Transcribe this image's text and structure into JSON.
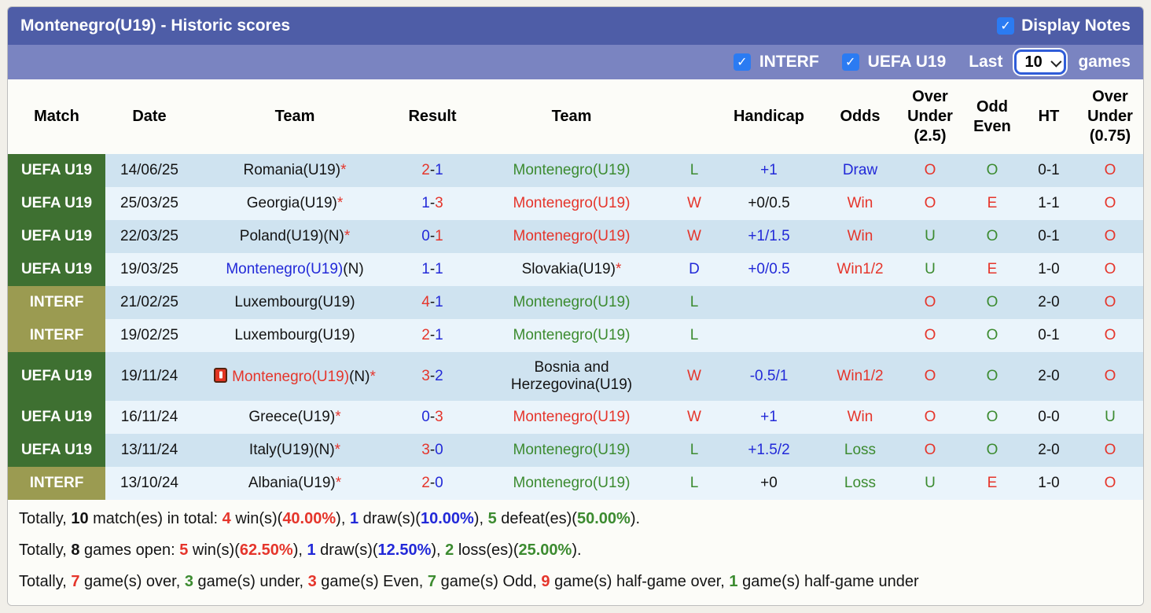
{
  "header": {
    "title": "Montenegro(U19) - Historic scores",
    "display_notes_label": "Display Notes",
    "filters": {
      "interf_label": "INTERF",
      "uefa_label": "UEFA U19",
      "last_label": "Last",
      "last_value": "10",
      "games_label": "games"
    }
  },
  "colors": {
    "bar1_bg": "#4e5da7",
    "bar2_bg": "#7a84c1",
    "checkbox_blue": "#2b7bf2",
    "badge_green": "#3e7031",
    "badge_olive": "#9b9b51",
    "stripe_dark": "#cfe3f0",
    "stripe_light": "#eaf4fb",
    "text_red": "#e5352b",
    "text_blue": "#2229d8",
    "text_green": "#3c8b30"
  },
  "table": {
    "columns": [
      "Match",
      "Date",
      "Team",
      "Result",
      "Team",
      "",
      "Handicap",
      "Odds",
      "Over\nUnder\n(2.5)",
      "Odd\nEven",
      "HT",
      "Over\nUnder\n(0.75)"
    ],
    "rows": [
      {
        "badge": {
          "label": "UEFA U19",
          "style": "green"
        },
        "date": "14/06/25",
        "icon": false,
        "tall": false,
        "home": [
          {
            "t": "Romania(U19)",
            "c": "k"
          },
          {
            "t": "*",
            "c": "r"
          }
        ],
        "score": {
          "h": "2",
          "hc": "r",
          "a": "1",
          "ac": "b"
        },
        "away": [
          {
            "t": "Montenegro(U19)",
            "c": "g"
          }
        ],
        "wl": {
          "t": "L",
          "c": "g"
        },
        "handicap": {
          "t": "+1",
          "c": "b"
        },
        "odds": {
          "t": "Draw",
          "c": "b"
        },
        "ou25": {
          "t": "O",
          "c": "r"
        },
        "oddeven": {
          "t": "O",
          "c": "g"
        },
        "ht": "0-1",
        "ou075": {
          "t": "O",
          "c": "r"
        }
      },
      {
        "badge": {
          "label": "UEFA U19",
          "style": "green"
        },
        "date": "25/03/25",
        "icon": false,
        "tall": false,
        "home": [
          {
            "t": "Georgia(U19)",
            "c": "k"
          },
          {
            "t": "*",
            "c": "r"
          }
        ],
        "score": {
          "h": "1",
          "hc": "b",
          "a": "3",
          "ac": "r"
        },
        "away": [
          {
            "t": "Montenegro(U19)",
            "c": "r"
          }
        ],
        "wl": {
          "t": "W",
          "c": "r"
        },
        "handicap": {
          "t": "+0/0.5",
          "c": "k"
        },
        "odds": {
          "t": "Win",
          "c": "r"
        },
        "ou25": {
          "t": "O",
          "c": "r"
        },
        "oddeven": {
          "t": "E",
          "c": "r"
        },
        "ht": "1-1",
        "ou075": {
          "t": "O",
          "c": "r"
        }
      },
      {
        "badge": {
          "label": "UEFA U19",
          "style": "green"
        },
        "date": "22/03/25",
        "icon": false,
        "tall": false,
        "home": [
          {
            "t": "Poland(U19)(N)",
            "c": "k"
          },
          {
            "t": "*",
            "c": "r"
          }
        ],
        "score": {
          "h": "0",
          "hc": "b",
          "a": "1",
          "ac": "r"
        },
        "away": [
          {
            "t": "Montenegro(U19)",
            "c": "r"
          }
        ],
        "wl": {
          "t": "W",
          "c": "r"
        },
        "handicap": {
          "t": "+1/1.5",
          "c": "b"
        },
        "odds": {
          "t": "Win",
          "c": "r"
        },
        "ou25": {
          "t": "U",
          "c": "g"
        },
        "oddeven": {
          "t": "O",
          "c": "g"
        },
        "ht": "0-1",
        "ou075": {
          "t": "O",
          "c": "r"
        }
      },
      {
        "badge": {
          "label": "UEFA U19",
          "style": "green"
        },
        "date": "19/03/25",
        "icon": false,
        "tall": false,
        "home": [
          {
            "t": "Montenegro(U19)",
            "c": "b"
          },
          {
            "t": "(N)",
            "c": "k"
          }
        ],
        "score": {
          "h": "1",
          "hc": "b",
          "a": "1",
          "ac": "b"
        },
        "away": [
          {
            "t": "Slovakia(U19)",
            "c": "k"
          },
          {
            "t": "*",
            "c": "r"
          }
        ],
        "wl": {
          "t": "D",
          "c": "b"
        },
        "handicap": {
          "t": "+0/0.5",
          "c": "b"
        },
        "odds": {
          "t": "Win1/2",
          "c": "r"
        },
        "ou25": {
          "t": "U",
          "c": "g"
        },
        "oddeven": {
          "t": "E",
          "c": "r"
        },
        "ht": "1-0",
        "ou075": {
          "t": "O",
          "c": "r"
        }
      },
      {
        "badge": {
          "label": "INTERF",
          "style": "olive"
        },
        "date": "21/02/25",
        "icon": false,
        "tall": false,
        "home": [
          {
            "t": "Luxembourg(U19)",
            "c": "k"
          }
        ],
        "score": {
          "h": "4",
          "hc": "r",
          "a": "1",
          "ac": "b"
        },
        "away": [
          {
            "t": "Montenegro(U19)",
            "c": "g"
          }
        ],
        "wl": {
          "t": "L",
          "c": "g"
        },
        "handicap": {
          "t": "",
          "c": "k"
        },
        "odds": {
          "t": "",
          "c": "k"
        },
        "ou25": {
          "t": "O",
          "c": "r"
        },
        "oddeven": {
          "t": "O",
          "c": "g"
        },
        "ht": "2-0",
        "ou075": {
          "t": "O",
          "c": "r"
        }
      },
      {
        "badge": {
          "label": "INTERF",
          "style": "olive"
        },
        "date": "19/02/25",
        "icon": false,
        "tall": false,
        "home": [
          {
            "t": "Luxembourg(U19)",
            "c": "k"
          }
        ],
        "score": {
          "h": "2",
          "hc": "r",
          "a": "1",
          "ac": "b"
        },
        "away": [
          {
            "t": "Montenegro(U19)",
            "c": "g"
          }
        ],
        "wl": {
          "t": "L",
          "c": "g"
        },
        "handicap": {
          "t": "",
          "c": "k"
        },
        "odds": {
          "t": "",
          "c": "k"
        },
        "ou25": {
          "t": "O",
          "c": "r"
        },
        "oddeven": {
          "t": "O",
          "c": "g"
        },
        "ht": "0-1",
        "ou075": {
          "t": "O",
          "c": "r"
        }
      },
      {
        "badge": {
          "label": "UEFA U19",
          "style": "green"
        },
        "date": "19/11/24",
        "icon": true,
        "tall": true,
        "home": [
          {
            "t": "Montenegro(U19)",
            "c": "r"
          },
          {
            "t": "(N)",
            "c": "k"
          },
          {
            "t": "*",
            "c": "r"
          }
        ],
        "score": {
          "h": "3",
          "hc": "r",
          "a": "2",
          "ac": "b"
        },
        "away": [
          {
            "t": "Bosnia and\nHerzegovina(U19)",
            "c": "k"
          }
        ],
        "wl": {
          "t": "W",
          "c": "r"
        },
        "handicap": {
          "t": "-0.5/1",
          "c": "b"
        },
        "odds": {
          "t": "Win1/2",
          "c": "r"
        },
        "ou25": {
          "t": "O",
          "c": "r"
        },
        "oddeven": {
          "t": "O",
          "c": "g"
        },
        "ht": "2-0",
        "ou075": {
          "t": "O",
          "c": "r"
        }
      },
      {
        "badge": {
          "label": "UEFA U19",
          "style": "green"
        },
        "date": "16/11/24",
        "icon": false,
        "tall": false,
        "home": [
          {
            "t": "Greece(U19)",
            "c": "k"
          },
          {
            "t": "*",
            "c": "r"
          }
        ],
        "score": {
          "h": "0",
          "hc": "b",
          "a": "3",
          "ac": "r"
        },
        "away": [
          {
            "t": "Montenegro(U19)",
            "c": "r"
          }
        ],
        "wl": {
          "t": "W",
          "c": "r"
        },
        "handicap": {
          "t": "+1",
          "c": "b"
        },
        "odds": {
          "t": "Win",
          "c": "r"
        },
        "ou25": {
          "t": "O",
          "c": "r"
        },
        "oddeven": {
          "t": "O",
          "c": "g"
        },
        "ht": "0-0",
        "ou075": {
          "t": "U",
          "c": "g"
        }
      },
      {
        "badge": {
          "label": "UEFA U19",
          "style": "green"
        },
        "date": "13/11/24",
        "icon": false,
        "tall": false,
        "home": [
          {
            "t": "Italy(U19)(N)",
            "c": "k"
          },
          {
            "t": "*",
            "c": "r"
          }
        ],
        "score": {
          "h": "3",
          "hc": "r",
          "a": "0",
          "ac": "b"
        },
        "away": [
          {
            "t": "Montenegro(U19)",
            "c": "g"
          }
        ],
        "wl": {
          "t": "L",
          "c": "g"
        },
        "handicap": {
          "t": "+1.5/2",
          "c": "b"
        },
        "odds": {
          "t": "Loss",
          "c": "g"
        },
        "ou25": {
          "t": "O",
          "c": "r"
        },
        "oddeven": {
          "t": "O",
          "c": "g"
        },
        "ht": "2-0",
        "ou075": {
          "t": "O",
          "c": "r"
        }
      },
      {
        "badge": {
          "label": "INTERF",
          "style": "olive"
        },
        "date": "13/10/24",
        "icon": false,
        "tall": false,
        "home": [
          {
            "t": "Albania(U19)",
            "c": "k"
          },
          {
            "t": "*",
            "c": "r"
          }
        ],
        "score": {
          "h": "2",
          "hc": "r",
          "a": "0",
          "ac": "b"
        },
        "away": [
          {
            "t": "Montenegro(U19)",
            "c": "g"
          }
        ],
        "wl": {
          "t": "L",
          "c": "g"
        },
        "handicap": {
          "t": "+0",
          "c": "k"
        },
        "odds": {
          "t": "Loss",
          "c": "g"
        },
        "ou25": {
          "t": "U",
          "c": "g"
        },
        "oddeven": {
          "t": "E",
          "c": "r"
        },
        "ht": "1-0",
        "ou075": {
          "t": "O",
          "c": "r"
        }
      }
    ]
  },
  "summary": [
    [
      {
        "t": "Totally, ",
        "c": "k"
      },
      {
        "t": "10",
        "c": "k",
        "b": 1
      },
      {
        "t": " match(es) in total: ",
        "c": "k"
      },
      {
        "t": "4",
        "c": "r",
        "b": 1
      },
      {
        "t": " win(s)(",
        "c": "k"
      },
      {
        "t": "40.00%",
        "c": "r",
        "b": 1
      },
      {
        "t": "), ",
        "c": "k"
      },
      {
        "t": "1",
        "c": "b",
        "b": 1
      },
      {
        "t": " draw(s)(",
        "c": "k"
      },
      {
        "t": "10.00%",
        "c": "b",
        "b": 1
      },
      {
        "t": "), ",
        "c": "k"
      },
      {
        "t": "5",
        "c": "g",
        "b": 1
      },
      {
        "t": " defeat(es)(",
        "c": "k"
      },
      {
        "t": "50.00%",
        "c": "g",
        "b": 1
      },
      {
        "t": ").",
        "c": "k"
      }
    ],
    [
      {
        "t": "Totally, ",
        "c": "k"
      },
      {
        "t": "8",
        "c": "k",
        "b": 1
      },
      {
        "t": " games open: ",
        "c": "k"
      },
      {
        "t": "5",
        "c": "r",
        "b": 1
      },
      {
        "t": " win(s)(",
        "c": "k"
      },
      {
        "t": "62.50%",
        "c": "r",
        "b": 1
      },
      {
        "t": "), ",
        "c": "k"
      },
      {
        "t": "1",
        "c": "b",
        "b": 1
      },
      {
        "t": " draw(s)(",
        "c": "k"
      },
      {
        "t": "12.50%",
        "c": "b",
        "b": 1
      },
      {
        "t": "), ",
        "c": "k"
      },
      {
        "t": "2",
        "c": "g",
        "b": 1
      },
      {
        "t": " loss(es)(",
        "c": "k"
      },
      {
        "t": "25.00%",
        "c": "g",
        "b": 1
      },
      {
        "t": ").",
        "c": "k"
      }
    ],
    [
      {
        "t": "Totally, ",
        "c": "k"
      },
      {
        "t": "7",
        "c": "r",
        "b": 1
      },
      {
        "t": " game(s) over, ",
        "c": "k"
      },
      {
        "t": "3",
        "c": "g",
        "b": 1
      },
      {
        "t": " game(s) under, ",
        "c": "k"
      },
      {
        "t": "3",
        "c": "r",
        "b": 1
      },
      {
        "t": " game(s) Even, ",
        "c": "k"
      },
      {
        "t": "7",
        "c": "g",
        "b": 1
      },
      {
        "t": " game(s) Odd, ",
        "c": "k"
      },
      {
        "t": "9",
        "c": "r",
        "b": 1
      },
      {
        "t": " game(s) half-game over, ",
        "c": "k"
      },
      {
        "t": "1",
        "c": "g",
        "b": 1
      },
      {
        "t": " game(s) half-game under",
        "c": "k"
      }
    ]
  ]
}
